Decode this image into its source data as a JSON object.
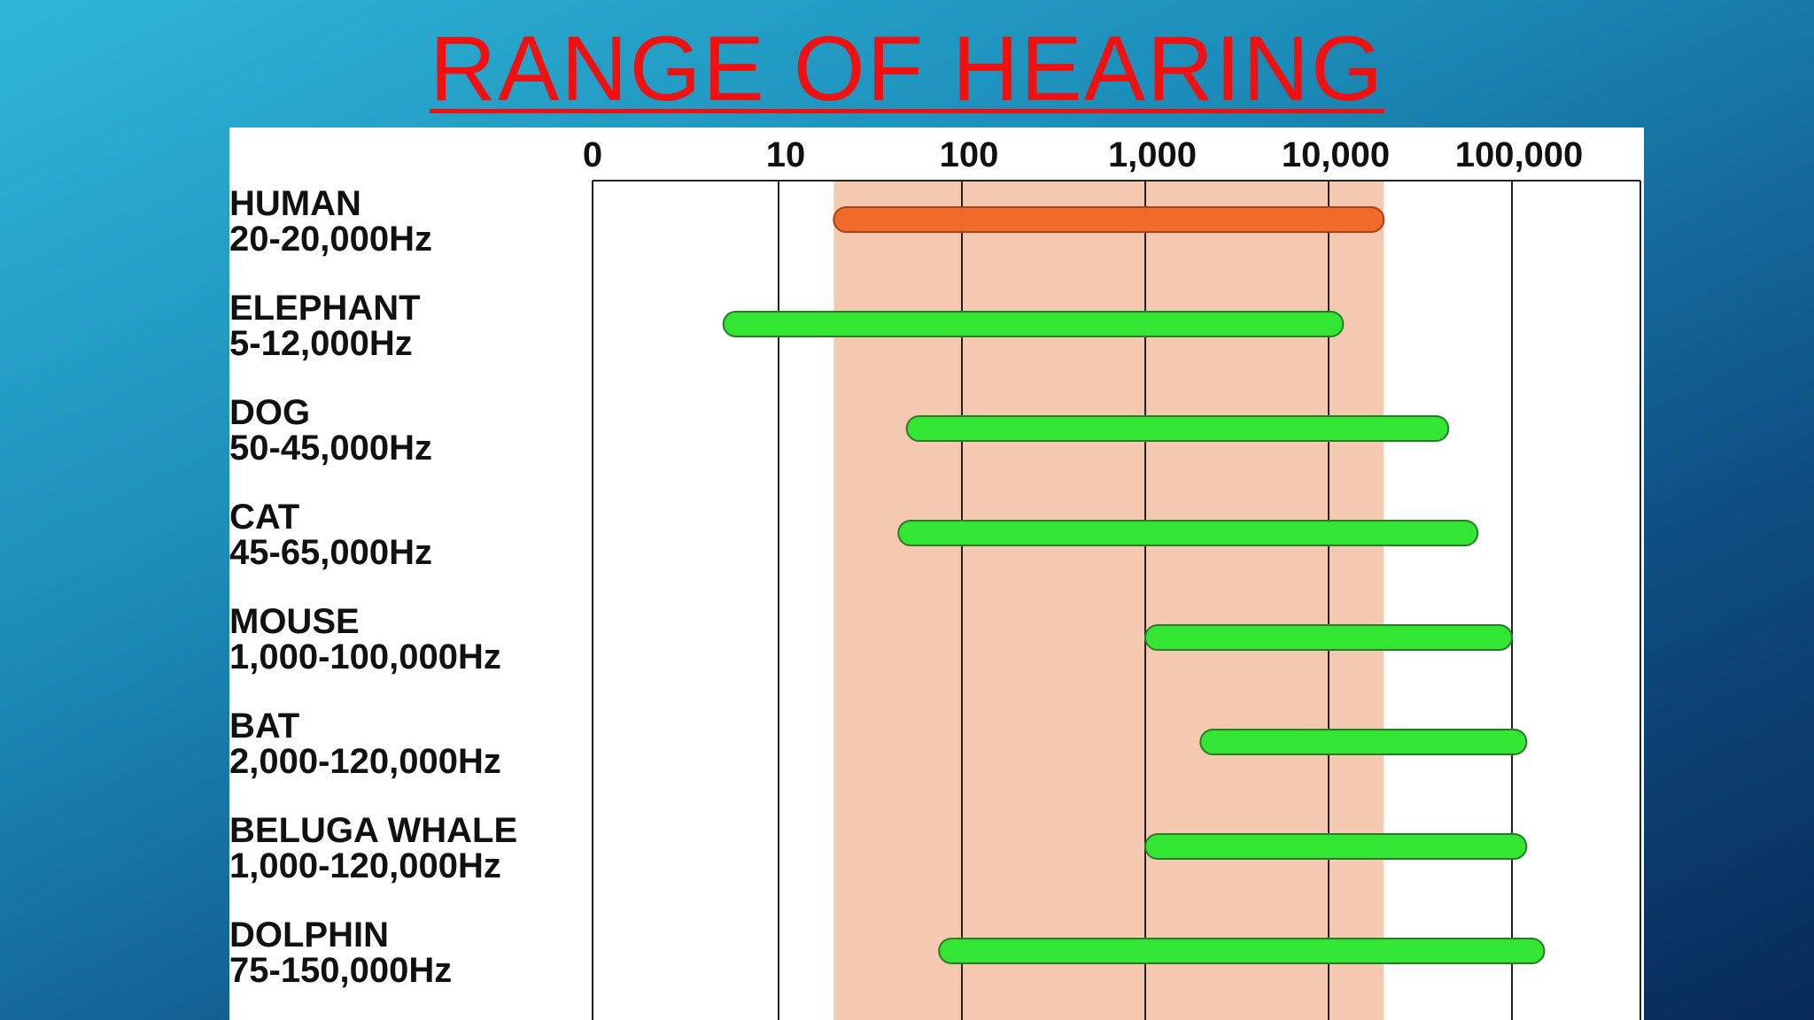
{
  "slide": {
    "title": "RANGE OF HEARING"
  },
  "chart_data": {
    "type": "bar",
    "subtype": "horizontal-range",
    "x_scale": "log",
    "x_tick_labels": [
      "0",
      "10",
      "100",
      "1,000",
      "10,000",
      "100,000"
    ],
    "highlight_band": {
      "from": 20,
      "to": 20000,
      "color": "#f5c8b0"
    },
    "colors": {
      "human": "#f06a2a",
      "others": "#33e633",
      "outline": "#2a7a2a"
    },
    "series": [
      {
        "name": "HUMAN",
        "range_label": "20-20,000Hz",
        "min": 20,
        "max": 20000
      },
      {
        "name": "ELEPHANT",
        "range_label": "5-12,000Hz",
        "min": 5,
        "max": 12000
      },
      {
        "name": "DOG",
        "range_label": "50-45,000Hz",
        "min": 50,
        "max": 45000
      },
      {
        "name": "CAT",
        "range_label": "45-65,000Hz",
        "min": 45,
        "max": 65000
      },
      {
        "name": "MOUSE",
        "range_label": "1,000-100,000Hz",
        "min": 1000,
        "max": 100000
      },
      {
        "name": "BAT",
        "range_label": "2,000-120,000Hz",
        "min": 2000,
        "max": 120000
      },
      {
        "name": "BELUGA WHALE",
        "range_label": "1,000-120,000Hz",
        "min": 1000,
        "max": 120000
      },
      {
        "name": "DOLPHIN",
        "range_label": "75-150,000Hz",
        "min": 75,
        "max": 150000
      }
    ]
  }
}
